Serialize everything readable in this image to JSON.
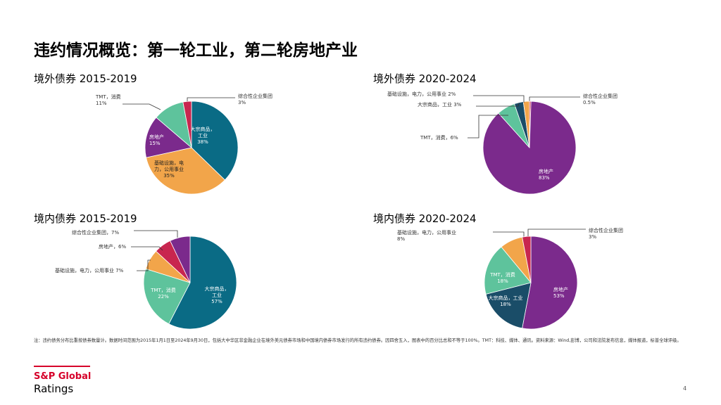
{
  "title": "违约情况概览：第一轮工业，第二轮房地产业",
  "colors": {
    "teal": "#0a6b85",
    "orange": "#f2a54a",
    "purple": "#7b2a8c",
    "green": "#5ec39c",
    "crimson": "#c8264f",
    "navy": "#1a4d68"
  },
  "chart_data": [
    {
      "type": "pie",
      "title": "境外债券 2015-2019",
      "slices": [
        {
          "label": "大宗商品，工业",
          "value": 38,
          "color": "#0a6b85",
          "lines": [
            "大宗商品，",
            "工业",
            "38%"
          ]
        },
        {
          "label": "基础设施，电力，公用事业",
          "value": 35,
          "color": "#f2a54a",
          "lines": [
            "基础设施，电",
            "力，公用事业",
            "35%"
          ]
        },
        {
          "label": "房地产",
          "value": 15,
          "color": "#7b2a8c",
          "lines": [
            "房地产",
            "15%"
          ]
        },
        {
          "label": "TMT，消费",
          "value": 11,
          "color": "#5ec39c",
          "lines": [
            "TMT，消费",
            "11%"
          ]
        },
        {
          "label": "综合性企业集团",
          "value": 3,
          "color": "#c8264f",
          "lines": [
            "综合性企业集团",
            "3%"
          ]
        }
      ]
    },
    {
      "type": "pie",
      "title": "境外债券 2020-2024",
      "slices": [
        {
          "label": "综合性企业集团",
          "value": 0.5,
          "color": "#c8264f",
          "lines": [
            "综合性企业集团",
            "0.5%"
          ]
        },
        {
          "label": "房地产",
          "value": 83,
          "color": "#7b2a8c",
          "lines": [
            "房地产",
            "83%"
          ]
        },
        {
          "label": "TMT，消费",
          "value": 6,
          "color": "#5ec39c",
          "lines": [
            "TMT，消费，6%"
          ]
        },
        {
          "label": "大宗商品，工业",
          "value": 3,
          "color": "#1a4d68",
          "lines": [
            "大宗商品，工业 3%"
          ]
        },
        {
          "label": "基础设施，电力，公用事业",
          "value": 2,
          "color": "#f2a54a",
          "lines": [
            "基础设施，电力，公用事业 2%"
          ]
        }
      ]
    },
    {
      "type": "pie",
      "title": "境内债券 2015-2019",
      "slices": [
        {
          "label": "大宗商品，工业",
          "value": 57,
          "color": "#0a6b85",
          "lines": [
            "大宗商品，",
            "工业",
            "57%"
          ]
        },
        {
          "label": "TMT，消费",
          "value": 22,
          "color": "#5ec39c",
          "lines": [
            "TMT，消费",
            "22%"
          ]
        },
        {
          "label": "基础设施，电力，公用事业",
          "value": 7,
          "color": "#f2a54a",
          "lines": [
            "基础设施，电力，公用事业 7%"
          ]
        },
        {
          "label": "房地产",
          "value": 6,
          "color": "#c8264f",
          "lines": [
            "房地产，6%"
          ]
        },
        {
          "label": "综合性企业集团",
          "value": 7,
          "color": "#7b2a8c",
          "lines": [
            "综合性企业集团，7%"
          ]
        }
      ]
    },
    {
      "type": "pie",
      "title": "境内债券 2020-2024",
      "slices": [
        {
          "label": "房地产",
          "value": 53,
          "color": "#7b2a8c",
          "lines": [
            "房地产",
            "53%"
          ]
        },
        {
          "label": "大宗商品，工业",
          "value": 18,
          "color": "#1a4d68",
          "lines": [
            "大宗商品，工业",
            "18%"
          ]
        },
        {
          "label": "TMT，消费",
          "value": 18,
          "color": "#5ec39c",
          "lines": [
            "TMT，消费",
            "18%"
          ]
        },
        {
          "label": "基础设施，电力，公用事业",
          "value": 8,
          "color": "#f2a54a",
          "lines": [
            "基础设施，电力，公用事业",
            "8%"
          ]
        },
        {
          "label": "综合性企业集团",
          "value": 3,
          "color": "#c8264f",
          "lines": [
            "综合性企业集团",
            "3%"
          ]
        }
      ]
    }
  ],
  "footnote": "注：违约债务分布比重按债券数量计。数据时间范围为2015年1月1日至2024年9月30日，包括大中华区非金融企业在境外美元债券市场和中国境内债券市场发行的所有违约债券。因四舍五入，图表中的百分比总和不等于100%。TMT：科技、媒体、通讯。资料来源：Wind,彭博，公司和法院发布信息，媒体报道，标普全球评级。",
  "logo": {
    "top": "S&P Global",
    "bottom": "Ratings"
  },
  "page_number": "4"
}
